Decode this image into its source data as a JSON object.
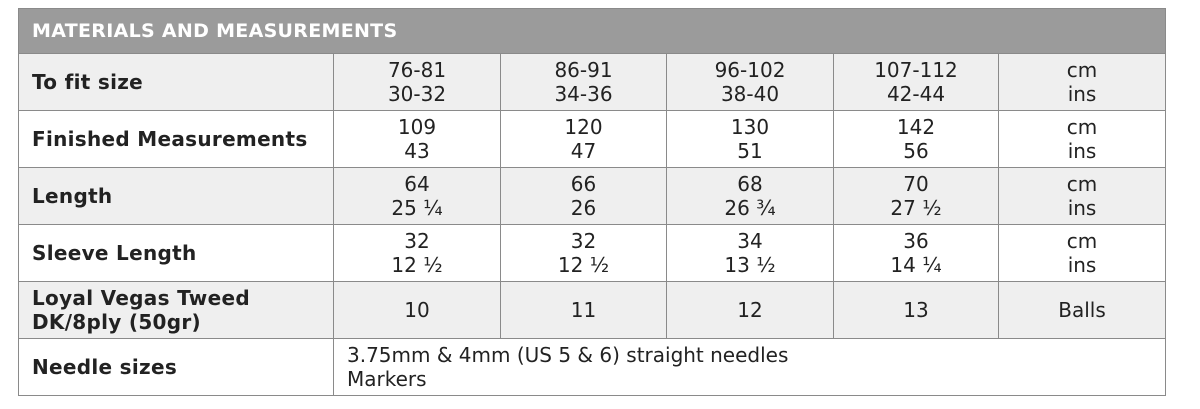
{
  "header": {
    "title": "MATERIALS AND MEASUREMENTS"
  },
  "table": {
    "rows": [
      {
        "label": [
          "To fit size"
        ],
        "cells": [
          [
            "76-81",
            "30-32"
          ],
          [
            "86-91",
            "34-36"
          ],
          [
            "96-102",
            "38-40"
          ],
          [
            "107-112",
            "42-44"
          ],
          [
            "cm",
            "ins"
          ]
        ]
      },
      {
        "label": [
          "Finished Measurements"
        ],
        "cells": [
          [
            "109",
            "43"
          ],
          [
            "120",
            "47"
          ],
          [
            "130",
            "51"
          ],
          [
            "142",
            "56"
          ],
          [
            "cm",
            "ins"
          ]
        ]
      },
      {
        "label": [
          "Length"
        ],
        "cells": [
          [
            "64",
            "25 ¼"
          ],
          [
            "66",
            "26"
          ],
          [
            "68",
            "26 ¾"
          ],
          [
            "70",
            "27 ½"
          ],
          [
            "cm",
            "ins"
          ]
        ]
      },
      {
        "label": [
          "Sleeve Length"
        ],
        "cells": [
          [
            "32",
            "12 ½"
          ],
          [
            "32",
            "12 ½"
          ],
          [
            "34",
            "13 ½"
          ],
          [
            "36",
            "14 ¼"
          ],
          [
            "cm",
            "ins"
          ]
        ]
      },
      {
        "label": [
          "Loyal Vegas Tweed",
          "DK/8ply (50gr)"
        ],
        "cells": [
          [
            "10"
          ],
          [
            "11"
          ],
          [
            "12"
          ],
          [
            "13"
          ],
          [
            "Balls"
          ]
        ]
      },
      {
        "label": [
          "Needle sizes"
        ],
        "cells": [
          [
            "3.75mm & 4mm (US 5 & 6) straight needles",
            "Markers"
          ]
        ]
      }
    ]
  }
}
